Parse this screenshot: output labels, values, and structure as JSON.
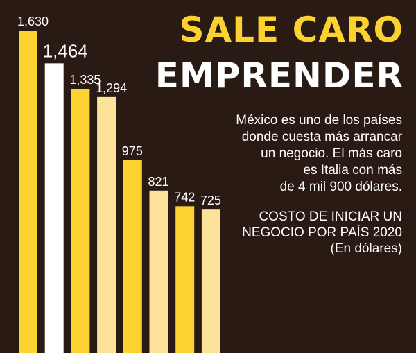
{
  "header": {
    "title_line1": "SALE CARO",
    "title_line2": "EMPRENDER"
  },
  "description_lines": [
    "México es uno de los países",
    "donde cuesta más arrancar",
    "un negocio. El más caro",
    "es Italia con más",
    "de 4 mil 900 dólares."
  ],
  "subtitle_lines": [
    "COSTO DE INICIAR UN",
    "NEGOCIO POR PAÍS 2020",
    "(En dólares)"
  ],
  "colors": {
    "background": "#2a1a14",
    "yellow": "#fbd22f",
    "pale": "#fde39a",
    "white": "#ffffff"
  },
  "chart_data": {
    "type": "bar",
    "title": "COSTO DE INICIAR UN NEGOCIO POR PAÍS 2020",
    "values": [
      1630,
      1464,
      1335,
      1294,
      975,
      821,
      742,
      725
    ],
    "labels": [
      "1,630",
      "1,464",
      "1,335",
      "1,294",
      "975",
      "821",
      "742",
      "725"
    ],
    "bar_colors": [
      "yellow",
      "white",
      "yellow",
      "pale",
      "yellow",
      "pale",
      "yellow",
      "pale"
    ],
    "ylim": [
      0,
      1630
    ],
    "grid": false,
    "legend": "none"
  }
}
